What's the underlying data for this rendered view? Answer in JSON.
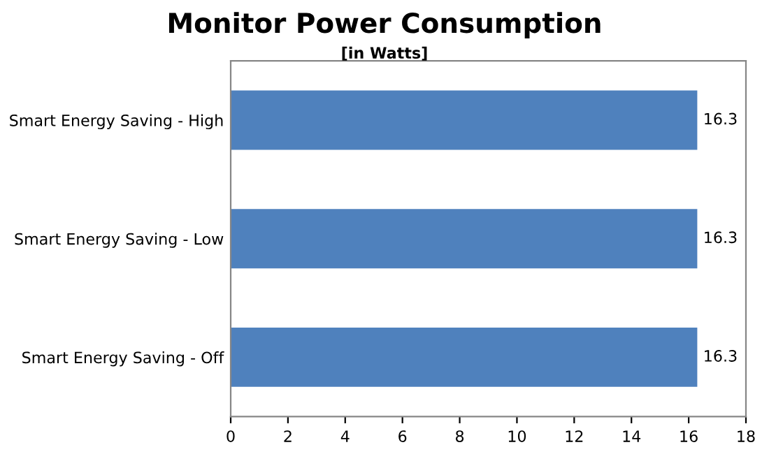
{
  "chart_data": {
    "type": "bar",
    "orientation": "horizontal",
    "title": "Monitor Power Consumption",
    "subtitle": "[in Watts]",
    "categories": [
      "Smart Energy Saving - High",
      "Smart Energy Saving - Low",
      "Smart Energy Saving - Off"
    ],
    "values": [
      16.3,
      16.3,
      16.3
    ],
    "color": "#4f81bd",
    "xlim": [
      0,
      18
    ],
    "xticks": [
      0,
      2,
      4,
      6,
      8,
      10,
      12,
      14,
      16,
      18
    ],
    "data_labels": true,
    "grid": false
  }
}
